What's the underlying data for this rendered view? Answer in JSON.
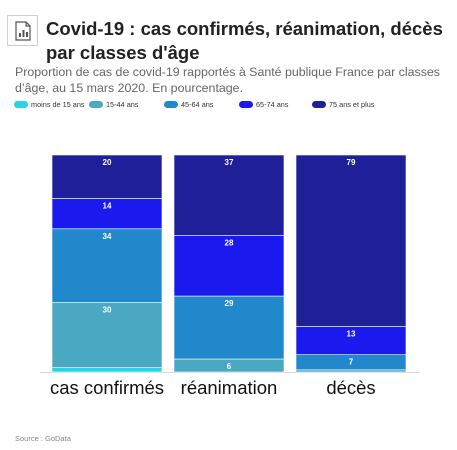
{
  "title": "Covid-19 : cas confirmés, réanimation, décès par classes d'âge",
  "subtitle": "Proportion de cas de covid-19 rapportés à Santé publique France par classes d’âge, au 15 mars 2020. En pourcentage.",
  "source": "Source : GoData",
  "chart_data": {
    "type": "bar",
    "stacked": true,
    "orientation": "vertical",
    "categories": [
      "cas confirmés",
      "réanimation",
      "décès"
    ],
    "series": [
      {
        "name": "moins de 15 ans",
        "color": "#29d3e6",
        "values": [
          2,
          0,
          0
        ]
      },
      {
        "name": "15-44 ans",
        "color": "#4aa8c2",
        "values": [
          30,
          6,
          1
        ]
      },
      {
        "name": "45-64 ans",
        "color": "#2188cc",
        "values": [
          34,
          29,
          7
        ]
      },
      {
        "name": "65-74 ans",
        "color": "#1a1aee",
        "values": [
          14,
          28,
          13
        ]
      },
      {
        "name": "75 ans et plus",
        "color": "#1f1f9a",
        "values": [
          20,
          37,
          79
        ]
      }
    ],
    "ylim": [
      0,
      100
    ],
    "legend_position": "top-left",
    "grid": false
  }
}
